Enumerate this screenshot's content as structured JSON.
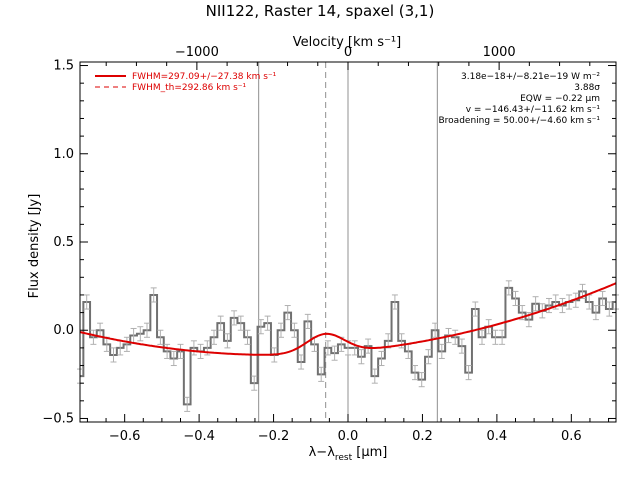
{
  "chart_data": {
    "type": "line",
    "title": "NII122, Raster 14, spaxel (3,1)",
    "xlabel_main": "λ−λ",
    "xlabel_sub": "rest",
    "xlabel_unit": " [μm]",
    "ylabel": "Flux density [Jy]",
    "top_axis_label": "Velocity [km s⁻¹]",
    "xlim": [
      -0.72,
      0.72
    ],
    "ylim": [
      -0.52,
      1.52
    ],
    "x_ticks": [
      -0.6,
      -0.4,
      -0.2,
      0.0,
      0.2,
      0.4,
      0.6
    ],
    "x_tick_labels": [
      "−0.6",
      "−0.4",
      "−0.2",
      "0.0",
      "0.2",
      "0.4",
      "0.6"
    ],
    "y_ticks": [
      -0.5,
      0.0,
      0.5,
      1.0,
      1.5
    ],
    "y_tick_labels": [
      "−0.5",
      "0.0",
      "0.5",
      "1.0",
      "1.5"
    ],
    "top_ticks": [
      -1000,
      0,
      1000
    ],
    "top_tick_labels": [
      "−1000",
      "0",
      "1000"
    ],
    "top_axis_um_per_kms": 0.000406,
    "vertical_lines": {
      "solid": [
        -0.24,
        0.0,
        0.24
      ],
      "dashed": [
        -0.06
      ]
    },
    "legend": [
      {
        "label": "FWHM=297.09+/−27.38 km s⁻¹",
        "style": "solid"
      },
      {
        "label": "FWHM_th=292.86 km s⁻¹",
        "style": "dashed"
      }
    ],
    "annotations": [
      "3.18e−18+/−8.21e−19 W m⁻²",
      "3.88σ",
      "EQW = −0.22 μm",
      "v = −146.43+/−11.62 km s⁻¹",
      "Broadening = 50.00+/−4.60 km s⁻¹"
    ],
    "colors": {
      "data": "#707070",
      "error": "#b0b0b0",
      "fit": "#dd0000",
      "vline": "#909090"
    },
    "series": [
      {
        "style": "step",
        "x": [
          -0.72,
          -0.702,
          -0.684,
          -0.666,
          -0.648,
          -0.63,
          -0.612,
          -0.594,
          -0.576,
          -0.558,
          -0.54,
          -0.522,
          -0.504,
          -0.486,
          -0.468,
          -0.45,
          -0.432,
          -0.414,
          -0.396,
          -0.378,
          -0.36,
          -0.342,
          -0.324,
          -0.306,
          -0.288,
          -0.27,
          -0.252,
          -0.234,
          -0.216,
          -0.198,
          -0.18,
          -0.162,
          -0.144,
          -0.126,
          -0.108,
          -0.09,
          -0.072,
          -0.054,
          -0.036,
          -0.018,
          0.0,
          0.018,
          0.036,
          0.054,
          0.072,
          0.09,
          0.108,
          0.126,
          0.144,
          0.162,
          0.18,
          0.198,
          0.216,
          0.234,
          0.252,
          0.27,
          0.288,
          0.306,
          0.324,
          0.342,
          0.36,
          0.378,
          0.396,
          0.414,
          0.432,
          0.45,
          0.468,
          0.486,
          0.504,
          0.522,
          0.54,
          0.558,
          0.576,
          0.594,
          0.612,
          0.63,
          0.648,
          0.666,
          0.684,
          0.702,
          0.72
        ],
        "y": [
          -0.26,
          0.16,
          -0.04,
          0.0,
          -0.08,
          -0.14,
          -0.1,
          -0.08,
          -0.03,
          -0.02,
          0.0,
          0.2,
          -0.04,
          -0.12,
          -0.16,
          -0.12,
          -0.42,
          -0.1,
          -0.12,
          -0.1,
          -0.04,
          0.04,
          -0.06,
          0.07,
          0.04,
          -0.04,
          -0.3,
          0.02,
          0.04,
          -0.14,
          0.0,
          0.1,
          0.0,
          -0.18,
          0.05,
          -0.08,
          -0.25,
          -0.1,
          -0.13,
          -0.08,
          -0.1,
          -0.1,
          -0.15,
          -0.09,
          -0.26,
          -0.16,
          -0.06,
          0.16,
          -0.06,
          -0.12,
          -0.24,
          -0.28,
          -0.15,
          0.0,
          -0.12,
          -0.03,
          -0.04,
          -0.09,
          -0.24,
          0.12,
          -0.04,
          0.02,
          -0.04,
          -0.04,
          0.24,
          0.18,
          0.1,
          0.06,
          0.15,
          0.11,
          0.14,
          0.16,
          0.14,
          0.16,
          0.17,
          0.22,
          0.16,
          0.1,
          0.18,
          0.12,
          0.16
        ],
        "err": 0.04
      },
      {
        "style": "fit",
        "continuum": {
          "a": 0.48,
          "x0": -0.2,
          "c": -0.14
        },
        "gaussian": {
          "amp": 0.11,
          "center": -0.06,
          "sigma": 0.051
        }
      }
    ]
  }
}
